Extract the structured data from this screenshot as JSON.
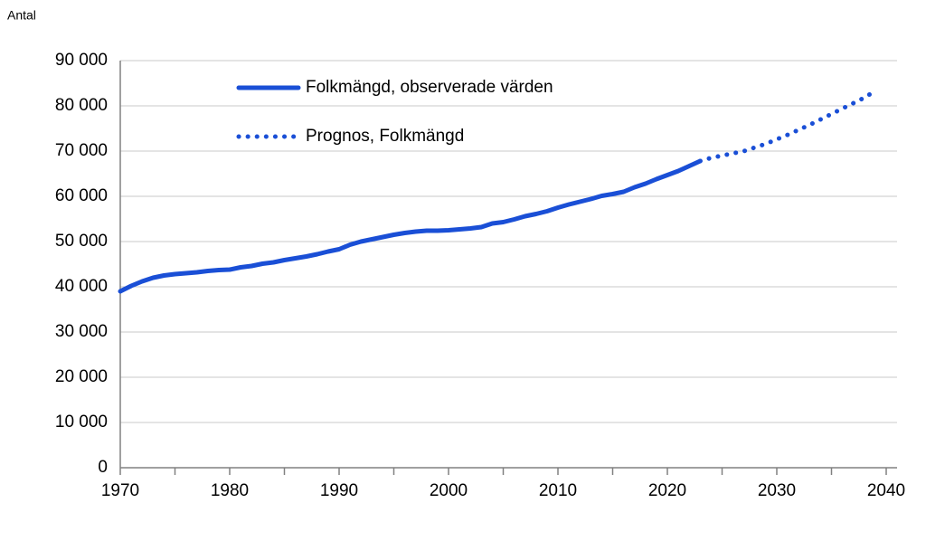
{
  "chart_data": {
    "type": "line",
    "y_label": "Antal",
    "xlim": [
      1970,
      2040
    ],
    "xticks": [
      1970,
      1980,
      1990,
      2000,
      2010,
      2020,
      2030,
      2040
    ],
    "ylim": [
      0,
      90000
    ],
    "yticks": [
      0,
      {
        "value": 10000,
        "label": "10 000"
      },
      {
        "value": 20000,
        "label": "20 000"
      },
      {
        "value": 30000,
        "label": "30 000"
      },
      {
        "value": 40000,
        "label": "40 000"
      },
      {
        "value": 50000,
        "label": "50 000"
      },
      {
        "value": 60000,
        "label": "60 000"
      },
      {
        "value": 70000,
        "label": "70 000"
      },
      {
        "value": 80000,
        "label": "80 000"
      },
      {
        "value": 90000,
        "label": "90 000"
      }
    ],
    "grid": true,
    "legend": "upper left",
    "series": [
      {
        "name": "Folkmängd, observerade värden",
        "color": "#1a4fd6",
        "style": "solid",
        "x": [
          1970,
          1971,
          1972,
          1973,
          1974,
          1975,
          1976,
          1977,
          1978,
          1979,
          1980,
          1981,
          1982,
          1983,
          1984,
          1985,
          1986,
          1987,
          1988,
          1989,
          1990,
          1991,
          1992,
          1993,
          1994,
          1995,
          1996,
          1997,
          1998,
          1999,
          2000,
          2001,
          2002,
          2003,
          2004,
          2005,
          2006,
          2007,
          2008,
          2009,
          2010,
          2011,
          2012,
          2013,
          2014,
          2015,
          2016,
          2017,
          2018,
          2019,
          2020,
          2021,
          2022,
          2023
        ],
        "values": [
          39000,
          40200,
          41200,
          42000,
          42500,
          42800,
          43000,
          43200,
          43500,
          43700,
          43800,
          44300,
          44600,
          45100,
          45400,
          45900,
          46300,
          46700,
          47200,
          47800,
          48300,
          49300,
          50000,
          50500,
          51000,
          51500,
          51900,
          52200,
          52400,
          52400,
          52500,
          52700,
          52900,
          53200,
          54000,
          54300,
          54900,
          55600,
          56100,
          56700,
          57500,
          58200,
          58800,
          59400,
          60100,
          60500,
          61000,
          62000,
          62800,
          63800,
          64700,
          65600,
          66700,
          67800
        ]
      },
      {
        "name": "Prognos, Folkmängd",
        "color": "#1a4fd6",
        "style": "dotted",
        "x": [
          2023,
          2024,
          2025,
          2026,
          2027,
          2028,
          2029,
          2030,
          2031,
          2032,
          2033,
          2034,
          2035,
          2036,
          2037,
          2038,
          2039
        ],
        "values": [
          67800,
          68500,
          69000,
          69500,
          70000,
          70800,
          71600,
          72600,
          73600,
          74700,
          75800,
          77000,
          78200,
          79400,
          80600,
          81800,
          83300
        ]
      }
    ]
  }
}
